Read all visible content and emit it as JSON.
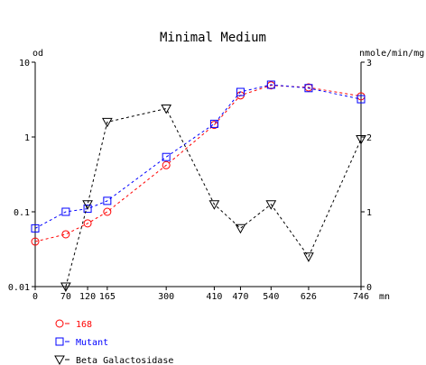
{
  "chart_data": {
    "type": "line",
    "title": "Minimal Medium",
    "left_axis_unit": "od",
    "right_axis_unit": "nmole/min/mg",
    "x_unit": "mn",
    "x_ticks": [
      0,
      70,
      120,
      165,
      300,
      410,
      470,
      540,
      626,
      746
    ],
    "x_tick_labels": [
      "0",
      "70",
      "120",
      "165",
      "300",
      "410",
      "470",
      "540",
      "626",
      "746"
    ],
    "xlim": [
      0,
      746
    ],
    "left_scale": "log",
    "left_ylim": [
      0.01,
      10
    ],
    "left_ticks": [
      0.01,
      0.1,
      1,
      10
    ],
    "left_tick_labels": [
      "0.01",
      "0.1",
      "1",
      "10"
    ],
    "right_ylim": [
      0,
      3
    ],
    "right_ticks": [
      0,
      1,
      2,
      3
    ],
    "right_tick_labels": [
      "0",
      "1",
      "2",
      "3"
    ],
    "grid": false,
    "legend_position": "bottom-left",
    "series": [
      {
        "name": "168",
        "axis": "left",
        "color": "#ff0000",
        "marker": "circle",
        "x": [
          0,
          70,
          120,
          165,
          300,
          410,
          470,
          540,
          626,
          746
        ],
        "y": [
          0.04,
          0.05,
          0.07,
          0.1,
          0.42,
          1.45,
          3.6,
          4.9,
          4.6,
          3.5
        ]
      },
      {
        "name": "Mutant",
        "axis": "left",
        "color": "#0000ff",
        "marker": "square",
        "x": [
          0,
          70,
          120,
          165,
          300,
          410,
          470,
          540,
          626,
          746
        ],
        "y": [
          0.06,
          0.1,
          0.11,
          0.14,
          0.54,
          1.5,
          4.0,
          5.0,
          4.5,
          3.2
        ]
      },
      {
        "name": "Beta Galactosidase",
        "axis": "right",
        "color": "#000000",
        "marker": "triangle-down",
        "x": [
          70,
          120,
          165,
          300,
          410,
          470,
          540,
          626,
          746
        ],
        "y": [
          0.0,
          1.1,
          2.2,
          2.38,
          1.1,
          0.78,
          1.1,
          0.4,
          1.97
        ]
      }
    ]
  }
}
